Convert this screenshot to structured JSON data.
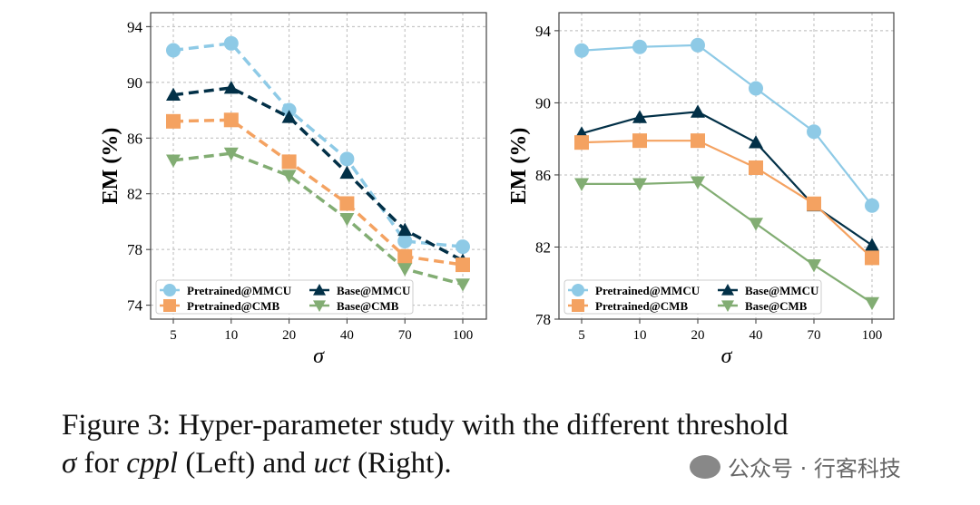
{
  "chart_data": [
    {
      "type": "line",
      "panel": "left",
      "linestyle": "dashed",
      "x": [
        "5",
        "10",
        "20",
        "40",
        "70",
        "100"
      ],
      "xlabel": "σ",
      "ylabel": "EM (%)",
      "ylim": [
        73,
        95
      ],
      "yticks": [
        74,
        78,
        82,
        86,
        90,
        94
      ],
      "grid": true,
      "legend": "lower-left",
      "series": [
        {
          "name": "Pretrained@MMCU",
          "color": "#8ecae6",
          "marker": "circle",
          "values": [
            92.3,
            92.8,
            88.0,
            84.5,
            78.6,
            78.2
          ]
        },
        {
          "name": "Base@MMCU",
          "color": "#023047",
          "marker": "triangle-up",
          "values": [
            89.1,
            89.6,
            87.5,
            83.5,
            79.4,
            77.2
          ]
        },
        {
          "name": "Pretrained@CMB",
          "color": "#f4a261",
          "marker": "square",
          "values": [
            87.2,
            87.3,
            84.3,
            81.3,
            77.5,
            76.9
          ]
        },
        {
          "name": "Base@CMB",
          "color": "#82ad73",
          "marker": "triangle-down",
          "values": [
            84.4,
            84.9,
            83.3,
            80.2,
            76.6,
            75.5
          ]
        }
      ]
    },
    {
      "type": "line",
      "panel": "right",
      "linestyle": "solid",
      "x": [
        "5",
        "10",
        "20",
        "40",
        "70",
        "100"
      ],
      "xlabel": "σ",
      "ylabel": "EM (%)",
      "ylim": [
        78,
        95
      ],
      "yticks": [
        78,
        82,
        86,
        90,
        94
      ],
      "grid": true,
      "legend": "lower-left",
      "series": [
        {
          "name": "Pretrained@MMCU",
          "color": "#8ecae6",
          "marker": "circle",
          "values": [
            92.9,
            93.1,
            93.2,
            90.8,
            88.4,
            84.3
          ]
        },
        {
          "name": "Base@MMCU",
          "color": "#023047",
          "marker": "triangle-up",
          "values": [
            88.3,
            89.2,
            89.5,
            87.8,
            84.3,
            82.1
          ]
        },
        {
          "name": "Pretrained@CMB",
          "color": "#f4a261",
          "marker": "square",
          "values": [
            87.8,
            87.9,
            87.9,
            86.4,
            84.4,
            81.4
          ]
        },
        {
          "name": "Base@CMB",
          "color": "#82ad73",
          "marker": "triangle-down",
          "values": [
            85.5,
            85.5,
            85.6,
            83.3,
            81.0,
            78.9
          ]
        }
      ]
    }
  ],
  "caption": {
    "line1": "Figure 3: Hyper-parameter study with the different threshold",
    "sigma": "σ",
    "for": " for ",
    "cppl": "cppl",
    "left": " (Left) and ",
    "uct": "uct",
    "right": " (Right)."
  },
  "watermark": "公众号 · 行客科技"
}
